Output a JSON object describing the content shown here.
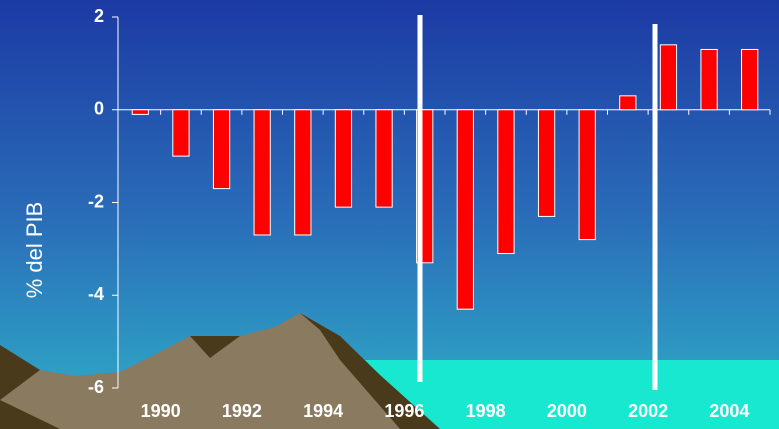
{
  "chart_data": {
    "type": "bar",
    "y_label": "% del PIB",
    "categories": [
      "1990",
      null,
      "1992",
      null,
      "1994",
      null,
      "1996",
      null,
      "1998",
      null,
      "2000",
      null,
      "2002",
      null,
      "2004",
      null
    ],
    "values": [
      -0.1,
      -1.0,
      -1.7,
      -2.7,
      -2.7,
      -2.1,
      -2.1,
      -3.3,
      -4.3,
      -3.1,
      -2.3,
      -2.8,
      0.3,
      1.4,
      1.3,
      1.3
    ],
    "color": "#ff0000",
    "ylim": [
      -6,
      2
    ],
    "yticks": [
      -6,
      -4,
      -2,
      0,
      2
    ]
  }
}
